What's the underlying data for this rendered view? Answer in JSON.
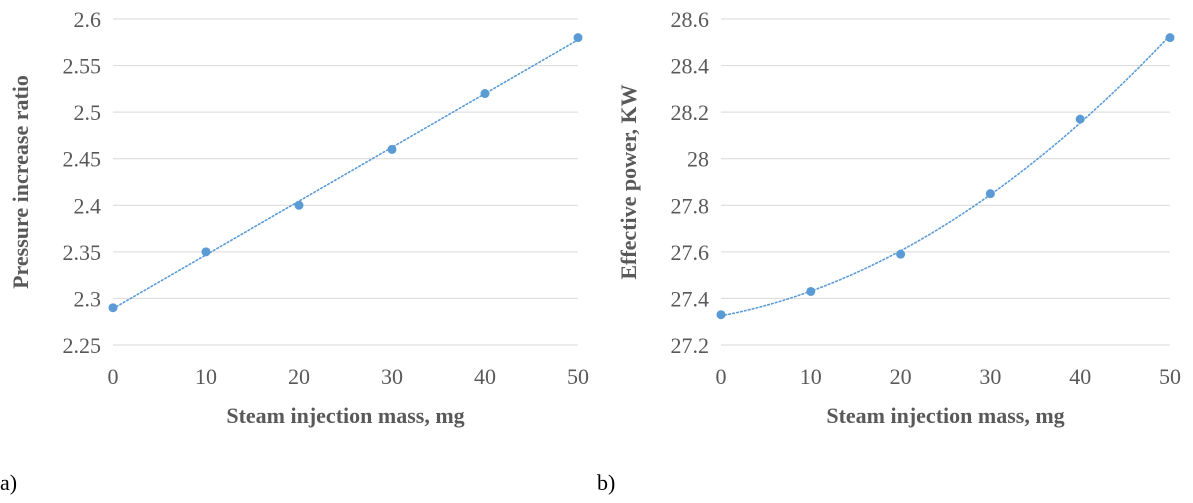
{
  "chart_data": [
    {
      "type": "scatter",
      "panel_label": "a)",
      "xlabel": "Steam injection mass, mg",
      "ylabel": "Pressure increase ratio",
      "xlim": [
        0,
        50
      ],
      "ylim": [
        2.25,
        2.6
      ],
      "xticks": [
        0,
        10,
        20,
        30,
        40,
        50
      ],
      "yticks": [
        2.25,
        2.3,
        2.35,
        2.4,
        2.45,
        2.5,
        2.55,
        2.6
      ],
      "ytick_labels": [
        "2.25",
        "2.3",
        "2.35",
        "2.4",
        "2.45",
        "2.5",
        "2.55",
        "2.6"
      ],
      "grid": "horizontal",
      "trendline": "linear, dotted",
      "series": [
        {
          "x": [
            0,
            10,
            20,
            30,
            40,
            50
          ],
          "y": [
            2.29,
            2.35,
            2.4,
            2.46,
            2.52,
            2.58
          ]
        }
      ]
    },
    {
      "type": "scatter",
      "panel_label": "b)",
      "xlabel": "Steam injection mass, mg",
      "ylabel": "Effective power, KW",
      "xlim": [
        0,
        50
      ],
      "ylim": [
        27.2,
        28.6
      ],
      "xticks": [
        0,
        10,
        20,
        30,
        40,
        50
      ],
      "yticks": [
        27.2,
        27.4,
        27.6,
        27.8,
        28.0,
        28.2,
        28.4,
        28.6
      ],
      "ytick_labels": [
        "27.2",
        "27.4",
        "27.6",
        "27.8",
        "28",
        "28.2",
        "28.4",
        "28.6"
      ],
      "grid": "horizontal",
      "trendline": "polynomial, dotted",
      "series": [
        {
          "x": [
            0,
            10,
            20,
            30,
            40,
            50
          ],
          "y": [
            27.33,
            27.43,
            27.59,
            27.85,
            28.17,
            28.52
          ]
        }
      ]
    }
  ],
  "colors": {
    "marker": "#5b9bd5",
    "grid": "#d9d9d9",
    "text": "#595959"
  }
}
